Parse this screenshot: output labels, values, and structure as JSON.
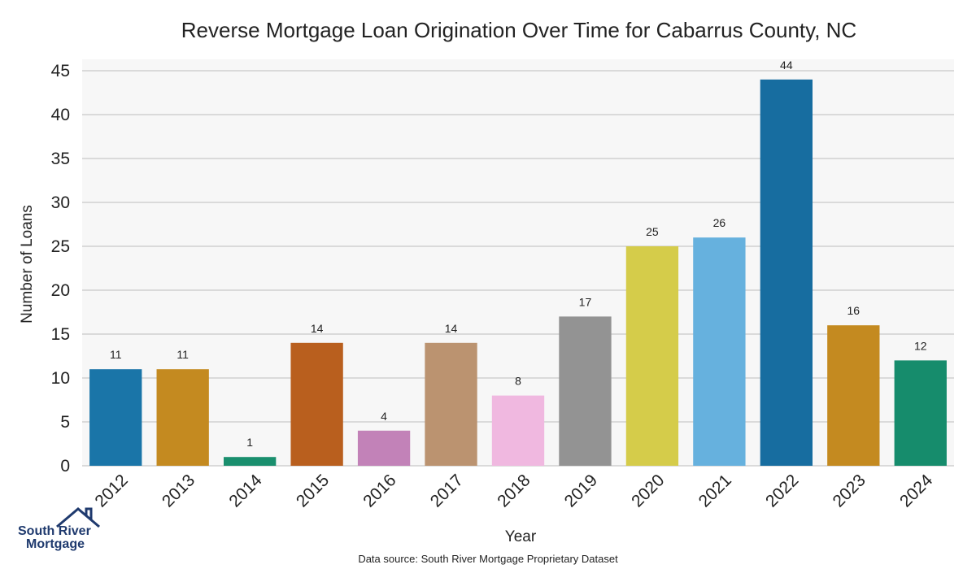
{
  "chart_data": {
    "type": "bar",
    "title": "Reverse Mortgage Loan Origination Over Time for Cabarrus County, NC",
    "xlabel": "Year",
    "ylabel": "Number of Loans",
    "categories": [
      "2012",
      "2013",
      "2014",
      "2015",
      "2016",
      "2017",
      "2018",
      "2019",
      "2020",
      "2021",
      "2022",
      "2023",
      "2024"
    ],
    "values": [
      11,
      11,
      1,
      14,
      4,
      14,
      8,
      17,
      25,
      26,
      44,
      16,
      12
    ],
    "colors": [
      "#1a75a8",
      "#c48a20",
      "#1a8f6e",
      "#b95f1e",
      "#c282b8",
      "#bb9370",
      "#f0b8e0",
      "#939393",
      "#d5cc4a",
      "#66b1de",
      "#176da0",
      "#c48a20",
      "#168c6c"
    ],
    "ylim": [
      0,
      45
    ],
    "yticks": [
      0,
      5,
      10,
      15,
      20,
      25,
      30,
      35,
      40,
      45
    ],
    "grid": true,
    "data_labels": true
  },
  "footer": {
    "source": "Data source: South River Mortgage Proprietary Dataset"
  },
  "logo": {
    "line1": "South River",
    "line2": "Mortgage",
    "icon": "house-roof-icon",
    "color": "#1f3a6e"
  }
}
